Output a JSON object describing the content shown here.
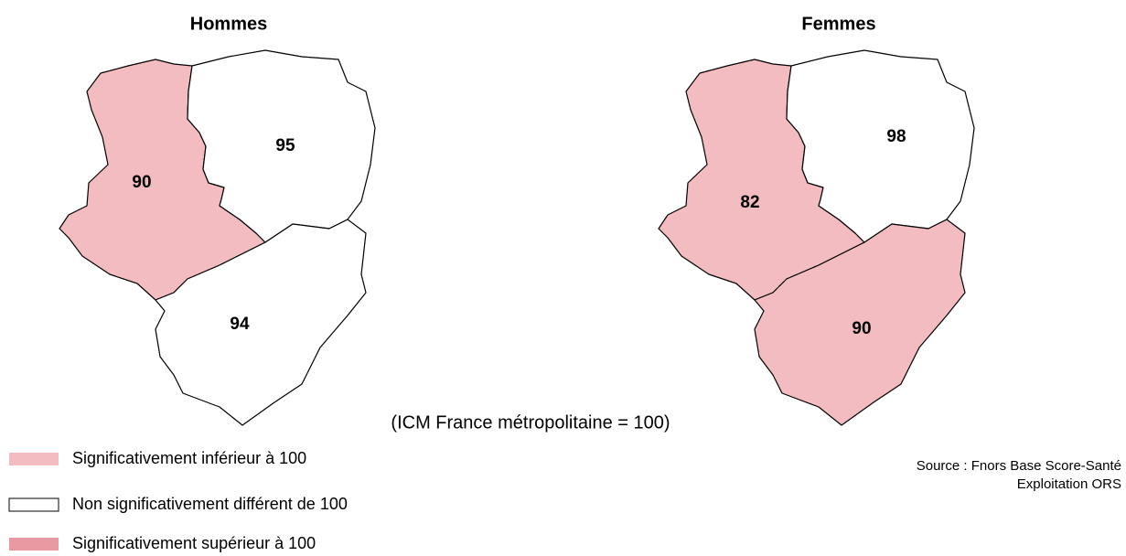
{
  "maps": [
    {
      "title": "Hommes",
      "regions": [
        {
          "value": 90,
          "color": "#f2bcc1"
        },
        {
          "value": 95,
          "color": "#ffffff"
        },
        {
          "value": 94,
          "color": "#ffffff"
        }
      ]
    },
    {
      "title": "Femmes",
      "regions": [
        {
          "value": 82,
          "color": "#f2bcc1"
        },
        {
          "value": 98,
          "color": "#ffffff"
        },
        {
          "value": 90,
          "color": "#f2bcc1"
        }
      ]
    }
  ],
  "note": "(ICM France métropolitaine = 100)",
  "legend": [
    {
      "label": "Significativement inférieur à 100",
      "color": "#f2bcc1"
    },
    {
      "label": "Non significativement différent de 100",
      "color": "#ffffff"
    },
    {
      "label": "Significativement supérieur à 100",
      "color": "#e898a0"
    }
  ],
  "source": [
    "Source : Fnors Base Score-Santé",
    "Exploitation ORS"
  ]
}
